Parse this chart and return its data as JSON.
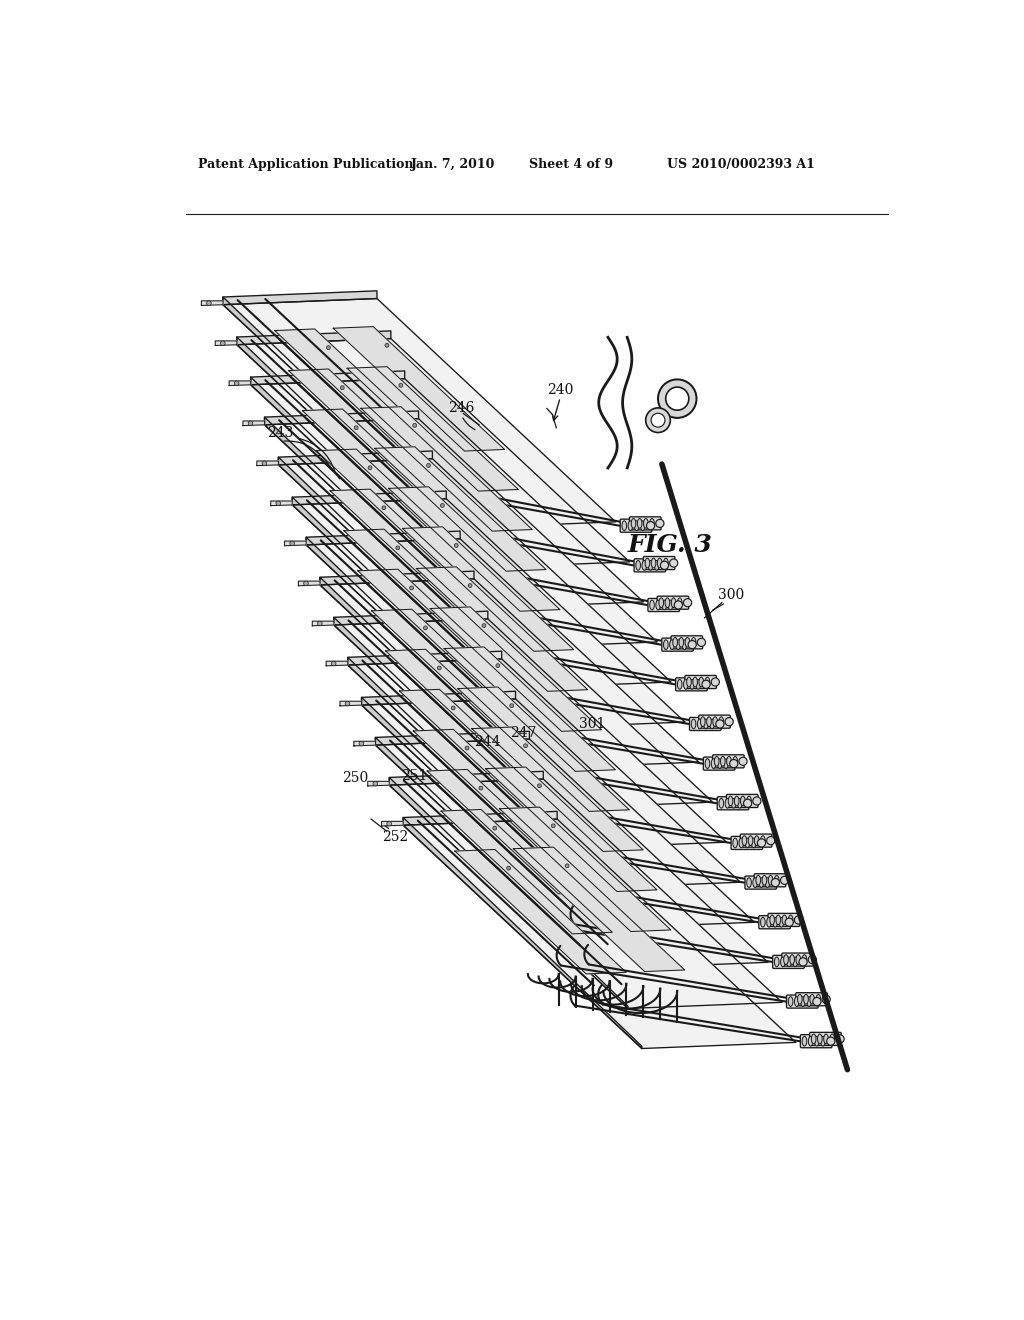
{
  "bg_color": "#ffffff",
  "header_text": "Patent Application Publication",
  "header_date": "Jan. 7, 2010",
  "header_sheet": "Sheet 4 of 9",
  "header_patent": "US 2010/0002393 A1",
  "fig_label": "FIG. 3",
  "line_color": "#1a1a1a",
  "line_width": 1.2,
  "num_rows": 14,
  "board_color": "#f2f2f2",
  "board_edge_color": "#1a1a1a",
  "chip_color": "#e0e0e0",
  "connector_color": "#e8e8e8"
}
